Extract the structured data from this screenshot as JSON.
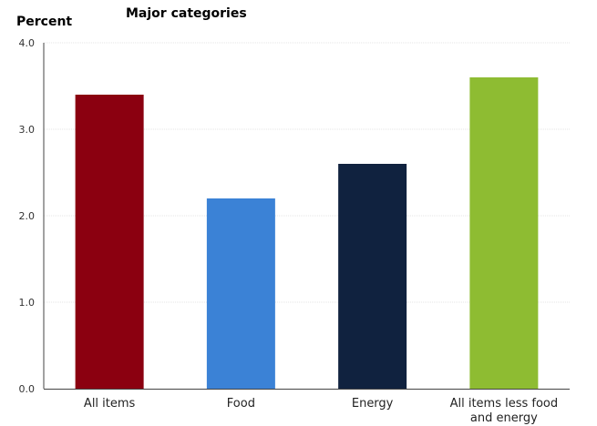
{
  "chart_data": {
    "type": "bar",
    "title": "Major categories",
    "ylabel": "Percent",
    "xlabel": "",
    "ylim": [
      0,
      4
    ],
    "yticks": [
      "0.0",
      "1.0",
      "2.0",
      "3.0",
      "4.0"
    ],
    "ytick_values": [
      0,
      1,
      2,
      3,
      4
    ],
    "grid": true,
    "categories": [
      [
        "All items"
      ],
      [
        "Food"
      ],
      [
        "Energy"
      ],
      [
        "All items less food",
        "and energy"
      ]
    ],
    "values": [
      3.4,
      2.2,
      2.6,
      3.6
    ],
    "colors": [
      "#8b0010",
      "#3b82d6",
      "#10223f",
      "#8ebc32"
    ]
  }
}
